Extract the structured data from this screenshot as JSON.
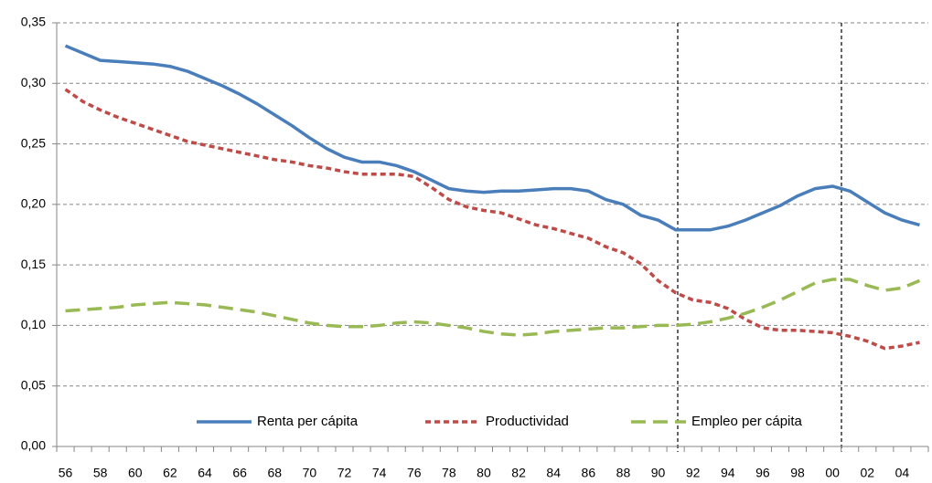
{
  "chart_data": {
    "type": "line",
    "categories": [
      "56",
      null,
      "58",
      null,
      "60",
      null,
      "62",
      null,
      "64",
      null,
      "66",
      null,
      "68",
      null,
      "70",
      null,
      "72",
      null,
      "74",
      null,
      "76",
      null,
      "78",
      null,
      "80",
      null,
      "82",
      null,
      "84",
      null,
      "86",
      null,
      "88",
      null,
      "90",
      null,
      "92",
      null,
      "94",
      null,
      "96",
      null,
      "98",
      null,
      "00",
      null,
      "02",
      null,
      "04",
      null
    ],
    "series": [
      {
        "name": "Renta per cápita",
        "color": "#4a7ebb",
        "style": "solid",
        "values": [
          0.331,
          0.325,
          0.319,
          0.318,
          0.317,
          0.316,
          0.314,
          0.31,
          0.304,
          0.298,
          0.291,
          0.283,
          0.274,
          0.265,
          0.255,
          0.246,
          0.239,
          0.235,
          0.235,
          0.232,
          0.227,
          0.22,
          0.213,
          0.211,
          0.21,
          0.211,
          0.211,
          0.212,
          0.213,
          0.213,
          0.211,
          0.204,
          0.2,
          0.191,
          0.187,
          0.179,
          0.179,
          0.179,
          0.182,
          0.187,
          0.193,
          0.199,
          0.207,
          0.213,
          0.215,
          0.211,
          0.202,
          0.193,
          0.187,
          0.183
        ]
      },
      {
        "name": "Productividad",
        "color": "#be4b48",
        "style": "short-dash",
        "values": [
          0.295,
          0.285,
          0.278,
          0.272,
          0.267,
          0.262,
          0.257,
          0.252,
          0.249,
          0.246,
          0.243,
          0.24,
          0.237,
          0.235,
          0.232,
          0.23,
          0.227,
          0.225,
          0.225,
          0.225,
          0.223,
          0.214,
          0.204,
          0.198,
          0.195,
          0.193,
          0.188,
          0.183,
          0.18,
          0.176,
          0.172,
          0.165,
          0.16,
          0.151,
          0.137,
          0.127,
          0.121,
          0.119,
          0.114,
          0.105,
          0.098,
          0.096,
          0.096,
          0.095,
          0.094,
          0.091,
          0.087,
          0.081,
          0.083,
          0.086
        ]
      },
      {
        "name": "Empleo per cápita",
        "color": "#98b954",
        "style": "long-dash",
        "values": [
          0.112,
          0.113,
          0.114,
          0.115,
          0.117,
          0.118,
          0.119,
          0.118,
          0.117,
          0.115,
          0.113,
          0.111,
          0.108,
          0.105,
          0.102,
          0.1,
          0.099,
          0.099,
          0.1,
          0.102,
          0.103,
          0.102,
          0.1,
          0.098,
          0.095,
          0.093,
          0.092,
          0.093,
          0.095,
          0.096,
          0.097,
          0.098,
          0.098,
          0.099,
          0.1,
          0.1,
          0.101,
          0.103,
          0.106,
          0.11,
          0.115,
          0.121,
          0.128,
          0.135,
          0.138,
          0.138,
          0.133,
          0.129,
          0.131,
          0.137
        ]
      }
    ],
    "ylim": [
      0,
      0.35
    ],
    "yticks": [
      {
        "value": 0,
        "label": "0,00"
      },
      {
        "value": 0.05,
        "label": "0,05"
      },
      {
        "value": 0.1,
        "label": "0,10"
      },
      {
        "value": 0.15,
        "label": "0,15"
      },
      {
        "value": 0.2,
        "label": "0,20"
      },
      {
        "value": 0.25,
        "label": "0,25"
      },
      {
        "value": 0.3,
        "label": "0,30"
      },
      {
        "value": 0.35,
        "label": "0,35"
      }
    ],
    "grid": true,
    "legend": "bottom"
  }
}
